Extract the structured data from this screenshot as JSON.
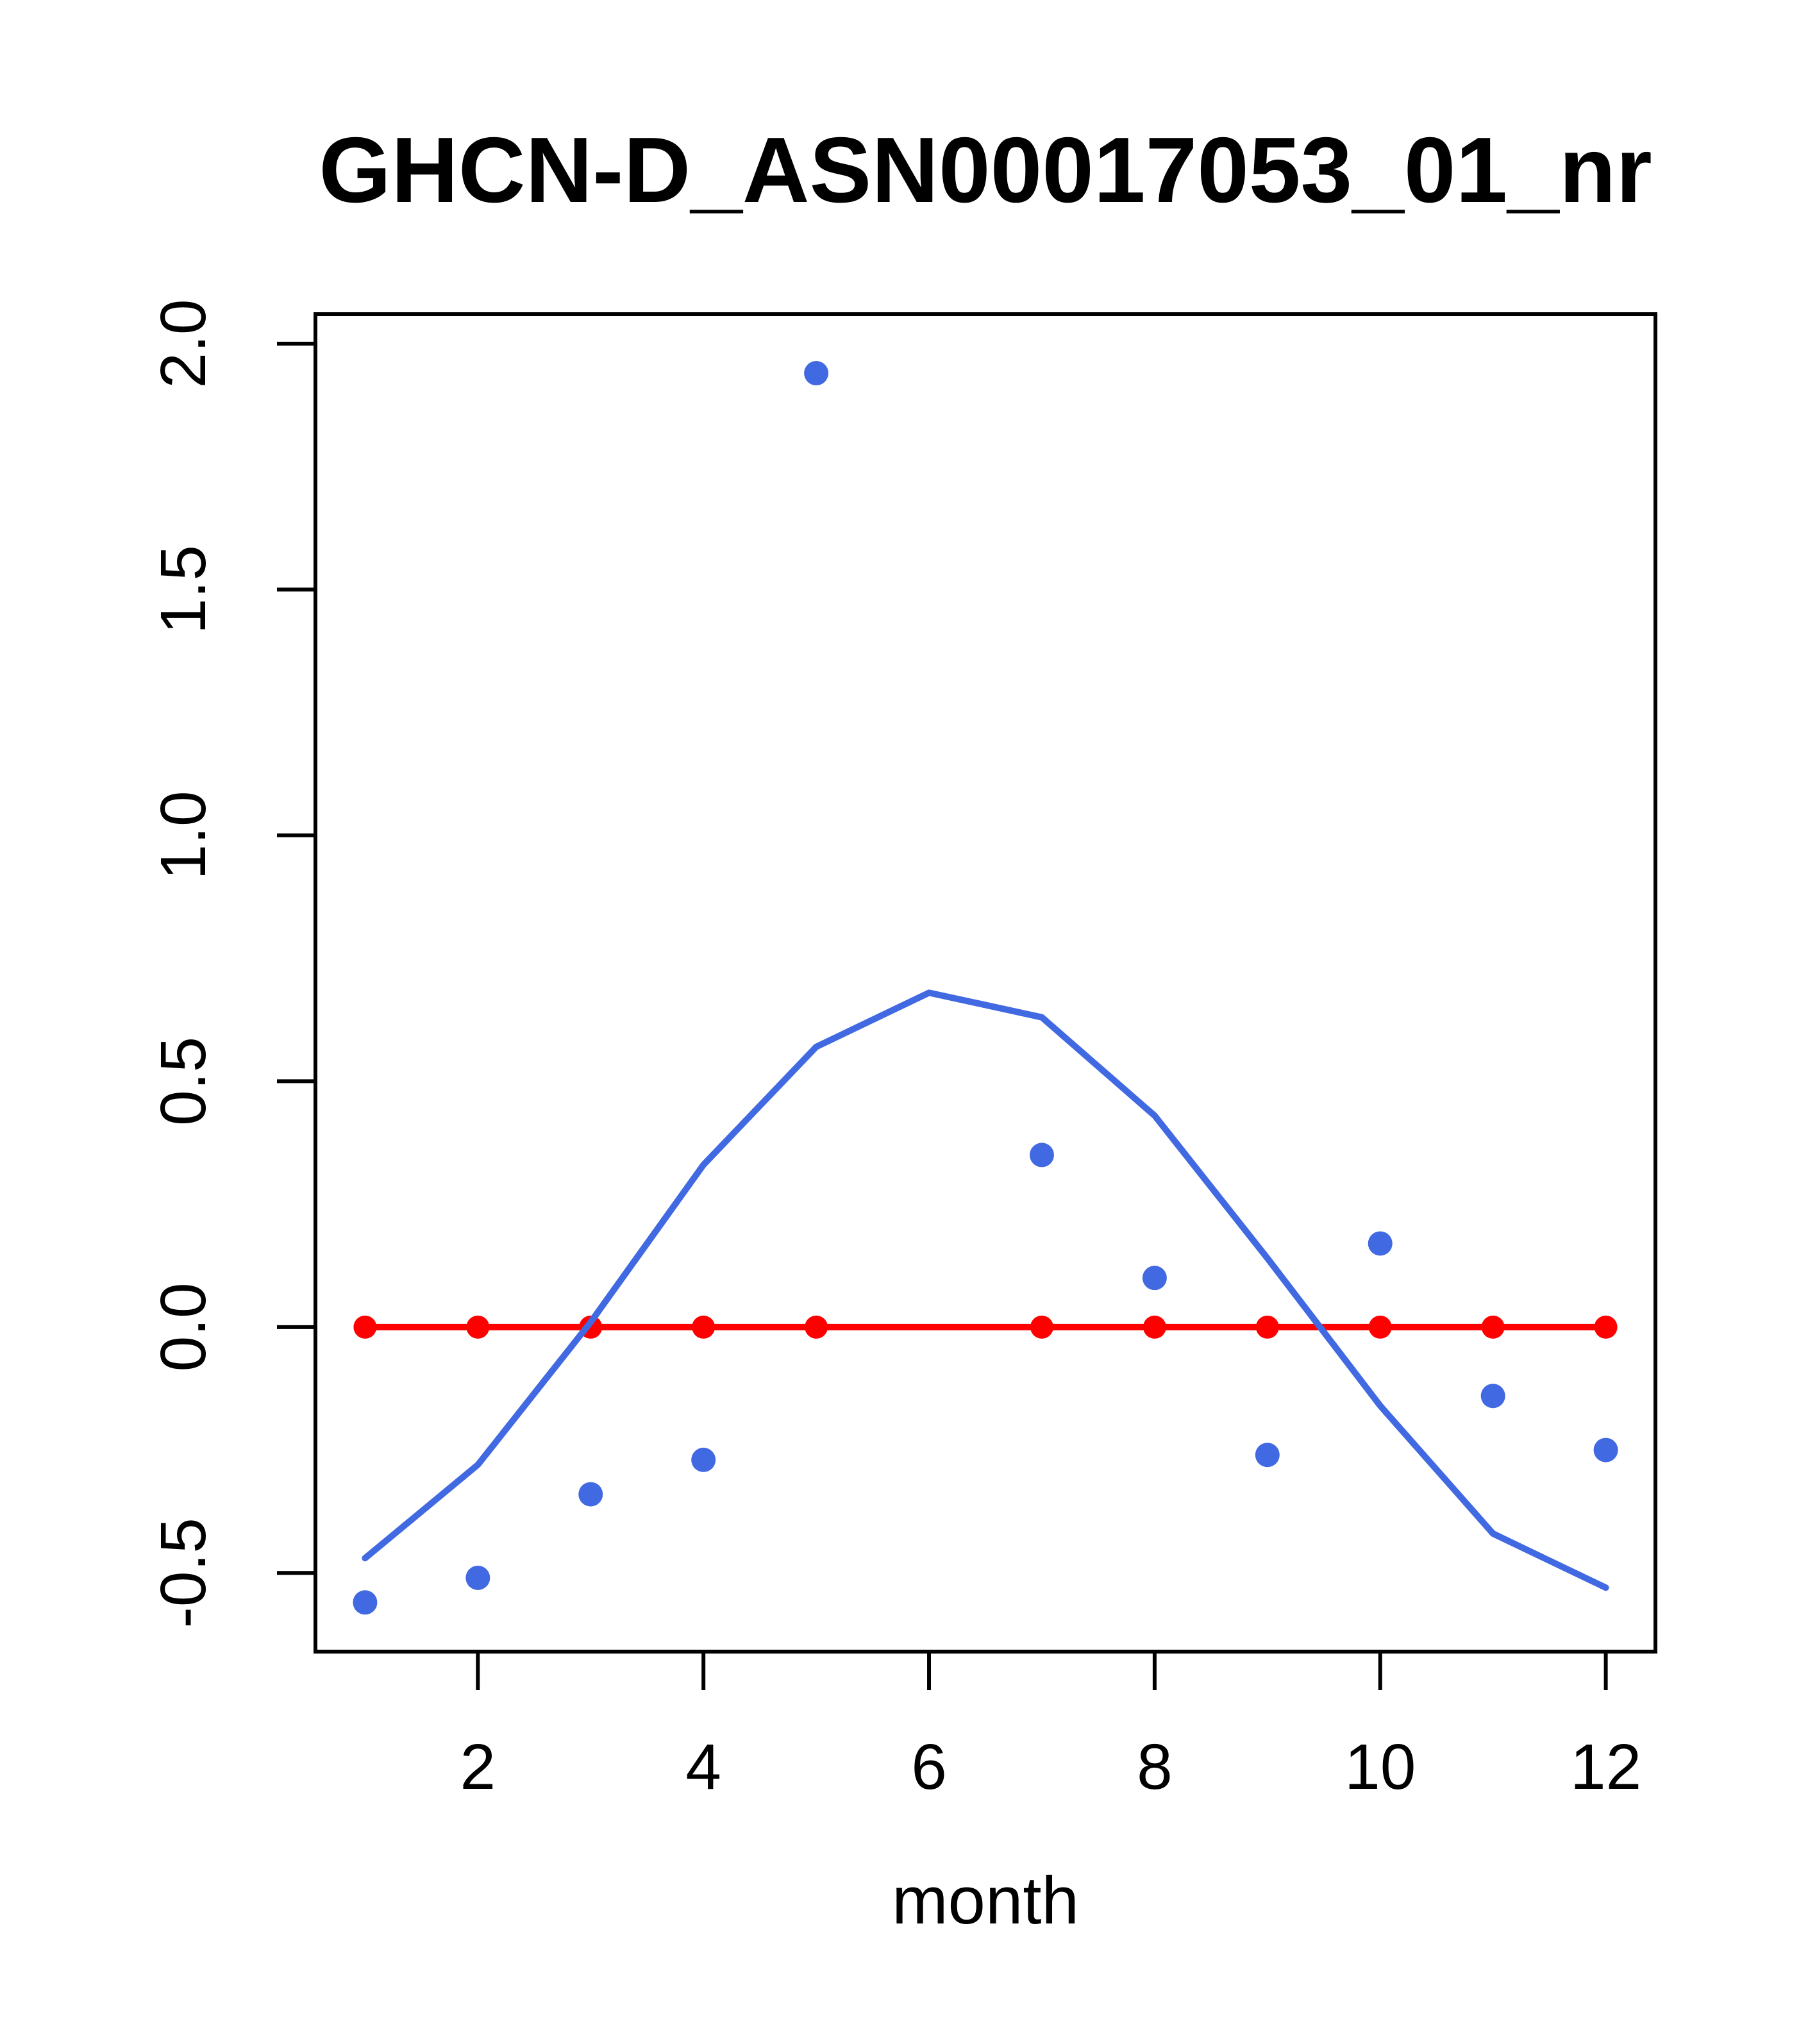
{
  "figure": {
    "background_color": "#ffffff",
    "text_color": "#000000"
  },
  "chart_data": {
    "type": "scatter",
    "title": "GHCN-D_ASN00017053_01_nr",
    "xlabel": "month",
    "ylabel": "",
    "xlim": [
      0.56,
      12.44
    ],
    "ylim": [
      -0.66,
      2.06
    ],
    "grid": false,
    "legend_position": "none",
    "x_ticks": [
      {
        "value": 2,
        "label": "2"
      },
      {
        "value": 4,
        "label": "4"
      },
      {
        "value": 6,
        "label": "6"
      },
      {
        "value": 8,
        "label": "8"
      },
      {
        "value": 10,
        "label": "10"
      },
      {
        "value": 12,
        "label": "12"
      }
    ],
    "y_ticks": [
      {
        "value": -0.5,
        "label": "-0.5"
      },
      {
        "value": 0.0,
        "label": "0.0"
      },
      {
        "value": 0.5,
        "label": "0.5"
      },
      {
        "value": 1.0,
        "label": "1.0"
      },
      {
        "value": 1.5,
        "label": "1.5"
      },
      {
        "value": 2.0,
        "label": "2.0"
      }
    ],
    "series": [
      {
        "name": "zero-reference-line",
        "type": "line",
        "color": "#FF0000",
        "stroke_width": 10,
        "x": [
          1,
          12
        ],
        "y": [
          0,
          0
        ]
      },
      {
        "name": "zero-reference-points",
        "type": "scatter",
        "color": "#FF0000",
        "marker_radius": 18,
        "x": [
          1,
          2,
          3,
          4,
          5,
          7,
          8,
          9,
          10,
          11,
          12
        ],
        "y": [
          0,
          0,
          0,
          0,
          0,
          0,
          0,
          0,
          0,
          0,
          0
        ]
      },
      {
        "name": "seasonal-cycle-line",
        "type": "line",
        "color": "#4169E1",
        "stroke_width": 10,
        "x": [
          1,
          2,
          3,
          4,
          5,
          6,
          7,
          8,
          9,
          10,
          11,
          12
        ],
        "y": [
          -0.47,
          -0.28,
          0.01,
          0.33,
          0.57,
          0.68,
          0.63,
          0.43,
          0.14,
          -0.16,
          -0.42,
          -0.53
        ]
      },
      {
        "name": "monthly-anomaly-points",
        "type": "scatter",
        "color": "#4169E1",
        "marker_radius": 19,
        "x": [
          1,
          2,
          3,
          4,
          5,
          7,
          8,
          9,
          10,
          11,
          12
        ],
        "y": [
          -0.56,
          -0.51,
          -0.34,
          -0.27,
          1.94,
          0.35,
          0.1,
          -0.26,
          0.17,
          -0.14,
          -0.25
        ]
      }
    ]
  }
}
